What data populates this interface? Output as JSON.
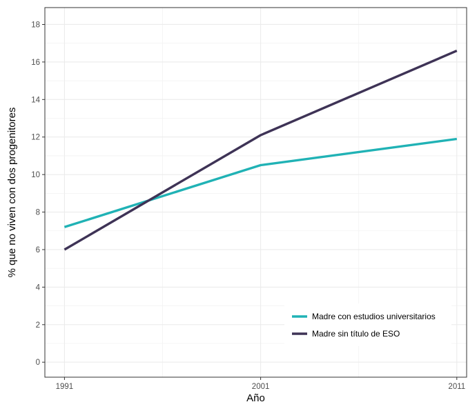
{
  "chart_data": {
    "type": "line",
    "title": "",
    "xlabel": "Año",
    "ylabel": "% que no viven con dos progenitores",
    "x": [
      1991,
      2001,
      2011
    ],
    "xticks": [
      "1991",
      "2001",
      "2011"
    ],
    "xlim": [
      1990,
      2011.5
    ],
    "ylim": [
      -0.8,
      18.9
    ],
    "yticks": [
      0,
      2,
      4,
      6,
      8,
      10,
      12,
      14,
      16,
      18
    ],
    "grid": true,
    "legend_position": "bottom-right",
    "series": [
      {
        "name": "Madre con estudios universitarios",
        "color": "#20b2b5",
        "values": [
          7.2,
          10.5,
          11.9
        ]
      },
      {
        "name": "Madre sin título de ESO",
        "color": "#3e3356",
        "values": [
          6.0,
          12.1,
          16.6
        ]
      }
    ]
  }
}
